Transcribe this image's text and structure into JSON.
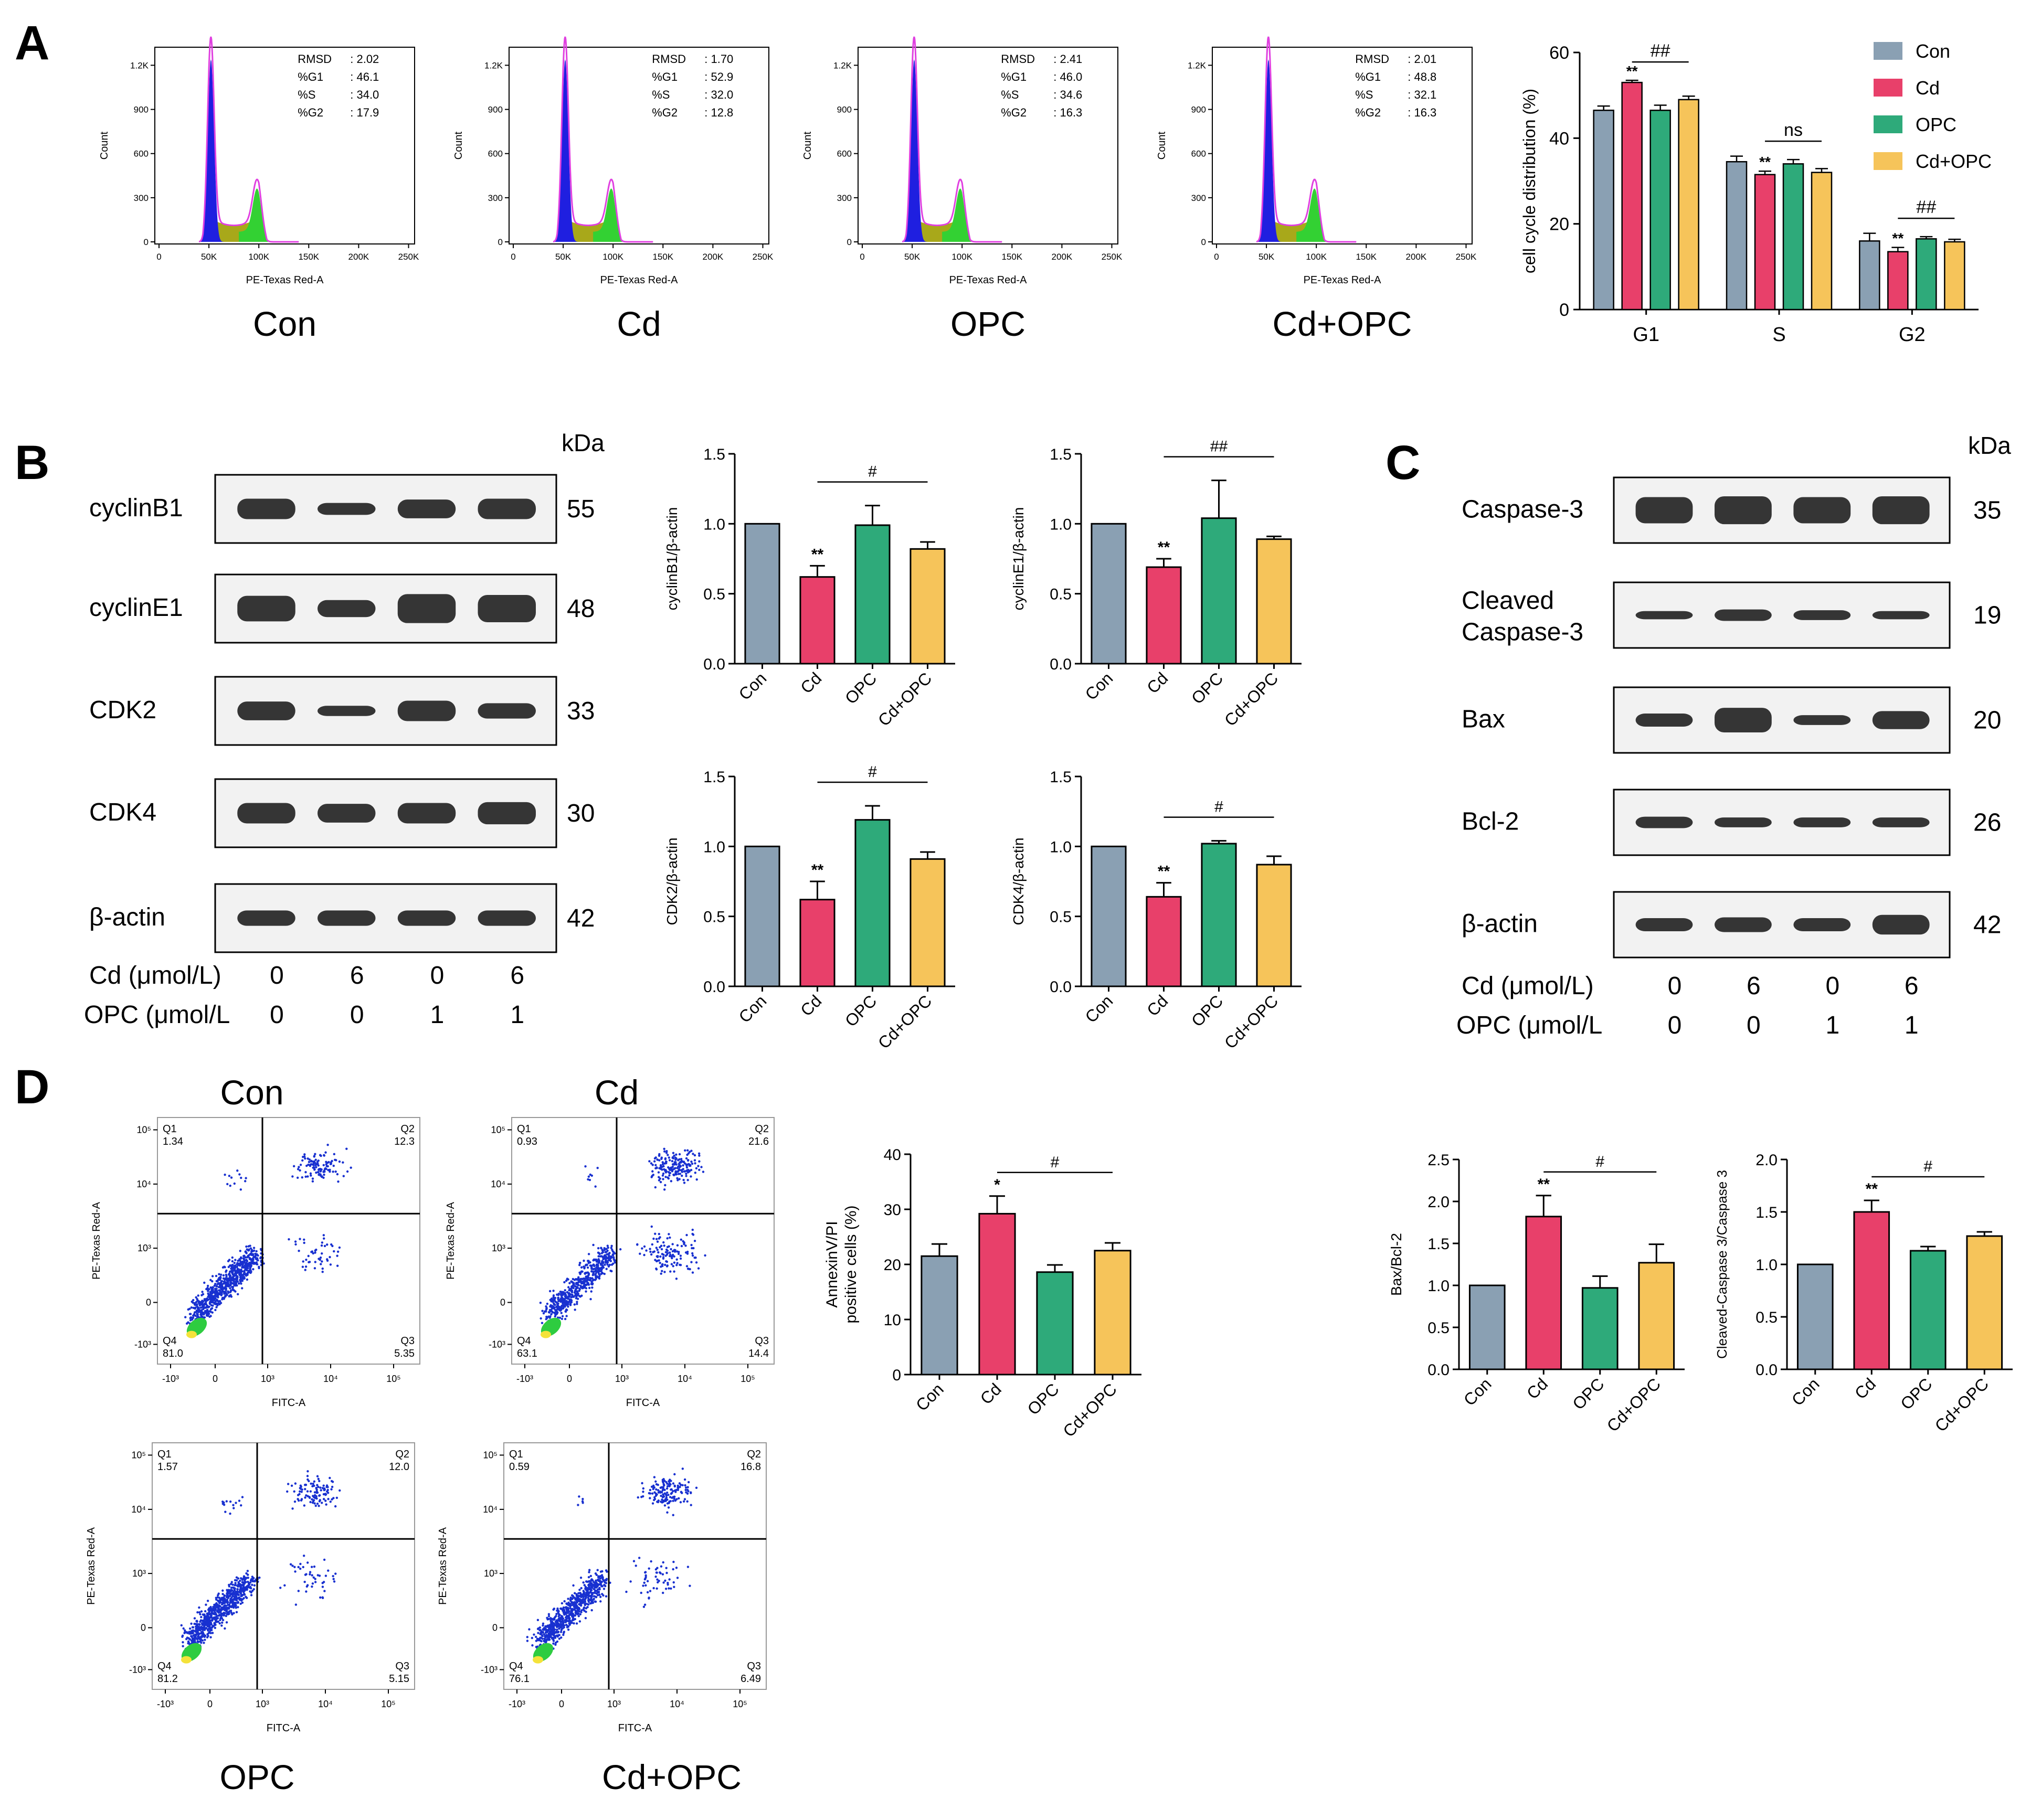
{
  "colors": {
    "con": "#8aa0b3",
    "cd": "#e8406a",
    "opc": "#2eaa7a",
    "cdopc": "#f6c45a",
    "hist_blue": "#1f1fe0",
    "hist_olive": "#a8a81a",
    "hist_green": "#33d133",
    "hist_outline": "#e040e0",
    "dot_blue": "#1830d0"
  },
  "panels": {
    "a": "A",
    "b": "B",
    "c": "C",
    "d": "D"
  },
  "histograms": [
    {
      "group": "Con",
      "stats": [
        {
          "k": "RMSD",
          "v": "2.02"
        },
        {
          "k": "%G1",
          "v": "46.1"
        },
        {
          "k": "%S",
          "v": "34.0"
        },
        {
          "k": "%G2",
          "v": "17.9"
        }
      ]
    },
    {
      "group": "Cd",
      "stats": [
        {
          "k": "RMSD",
          "v": "1.70"
        },
        {
          "k": "%G1",
          "v": "52.9"
        },
        {
          "k": "%S",
          "v": "32.0"
        },
        {
          "k": "%G2",
          "v": "12.8"
        }
      ]
    },
    {
      "group": "OPC",
      "stats": [
        {
          "k": "RMSD",
          "v": "2.41"
        },
        {
          "k": "%G1",
          "v": "46.0"
        },
        {
          "k": "%S",
          "v": "34.6"
        },
        {
          "k": "%G2",
          "v": "16.3"
        }
      ]
    },
    {
      "group": "Cd+OPC",
      "stats": [
        {
          "k": "RMSD",
          "v": "2.01"
        },
        {
          "k": "%G1",
          "v": "48.8"
        },
        {
          "k": "%S",
          "v": "32.1"
        },
        {
          "k": "%G2",
          "v": "16.3"
        }
      ]
    }
  ],
  "hist_axis": {
    "xlabel": "PE-Texas Red-A",
    "ylabel": "Count",
    "xticks": [
      "0",
      "50K",
      "100K",
      "150K",
      "200K",
      "250K"
    ],
    "yticks": [
      "0",
      "300",
      "600",
      "900",
      "1.2K"
    ]
  },
  "cellcycle_chart": {
    "type": "bar",
    "ylabel": "cell cycle distribution (%)",
    "ylim": [
      0,
      60
    ],
    "yticks": [
      "0",
      "20",
      "40",
      "60"
    ],
    "categories": [
      "G1",
      "S",
      "G2"
    ],
    "legend": [
      "Con",
      "Cd",
      "OPC",
      "Cd+OPC"
    ],
    "legend_position": "top-right",
    "series": [
      {
        "name": "Con",
        "values": [
          46.5,
          34.5,
          16.0
        ],
        "err": [
          1.0,
          1.3,
          1.8
        ]
      },
      {
        "name": "Cd",
        "values": [
          53.0,
          31.5,
          13.5
        ],
        "err": [
          0.5,
          0.8,
          1.0
        ]
      },
      {
        "name": "OPC",
        "values": [
          46.5,
          34.0,
          16.5
        ],
        "err": [
          1.2,
          1.0,
          0.5
        ]
      },
      {
        "name": "Cd+OPC",
        "values": [
          49.0,
          32.0,
          15.8
        ],
        "err": [
          0.8,
          0.9,
          0.6
        ]
      }
    ],
    "sig": [
      "##",
      "ns",
      "##"
    ],
    "star": "**"
  },
  "wb_b": {
    "kda": "kDa",
    "rows": [
      {
        "label": "cyclinB1",
        "kda": "55"
      },
      {
        "label": "cyclinE1",
        "kda": "48"
      },
      {
        "label": "CDK2",
        "kda": "33"
      },
      {
        "label": "CDK4",
        "kda": "30"
      },
      {
        "label": "β-actin",
        "kda": "42"
      }
    ],
    "cd_label": "Cd (μmol/L)",
    "opc_label": "OPC (μmol/L",
    "cd_values": [
      "0",
      "6",
      "0",
      "6"
    ],
    "opc_values": [
      "0",
      "0",
      "1",
      "1"
    ]
  },
  "wb_c": {
    "kda": "kDa",
    "rows": [
      {
        "label": "Caspase-3",
        "kda": "35"
      },
      {
        "label": "Cleaved\nCaspase-3",
        "kda": "19"
      },
      {
        "label": "Bax",
        "kda": "20"
      },
      {
        "label": "Bcl-2",
        "kda": "26"
      },
      {
        "label": "β-actin",
        "kda": "42"
      }
    ],
    "cd_label": "Cd (μmol/L)",
    "opc_label": "OPC (μmol/L",
    "cd_values": [
      "0",
      "6",
      "0",
      "6"
    ],
    "opc_values": [
      "0",
      "0",
      "1",
      "1"
    ]
  },
  "bar_charts": [
    {
      "id": "cyclinb1",
      "type": "bar",
      "ylabel": "cyclinB1/β-actin",
      "ylim": [
        0,
        1.5
      ],
      "yticks": [
        "0.0",
        "0.5",
        "1.0",
        "1.5"
      ],
      "categories": [
        "Con",
        "Cd",
        "OPC",
        "Cd+OPC"
      ],
      "values": [
        1.0,
        0.62,
        0.99,
        0.82
      ],
      "err": [
        0,
        0.08,
        0.14,
        0.05
      ],
      "star": "**",
      "sig": "#"
    },
    {
      "id": "cycline1",
      "type": "bar",
      "ylabel": "cyclinE1/β-actin",
      "ylim": [
        0,
        1.5
      ],
      "yticks": [
        "0.0",
        "0.5",
        "1.0",
        "1.5"
      ],
      "categories": [
        "Con",
        "Cd",
        "OPC",
        "Cd+OPC"
      ],
      "values": [
        1.0,
        0.69,
        1.04,
        0.89
      ],
      "err": [
        0,
        0.06,
        0.27,
        0.02
      ],
      "star": "**",
      "sig": "##"
    },
    {
      "id": "cdk2",
      "type": "bar",
      "ylabel": "CDK2/β-actin",
      "ylim": [
        0,
        1.5
      ],
      "yticks": [
        "0.0",
        "0.5",
        "1.0",
        "1.5"
      ],
      "categories": [
        "Con",
        "Cd",
        "OPC",
        "Cd+OPC"
      ],
      "values": [
        1.0,
        0.62,
        1.19,
        0.91
      ],
      "err": [
        0,
        0.13,
        0.1,
        0.05
      ],
      "star": "**",
      "sig": "#"
    },
    {
      "id": "cdk4",
      "type": "bar",
      "ylabel": "CDK4/β-actin",
      "ylim": [
        0,
        1.5
      ],
      "yticks": [
        "0.0",
        "0.5",
        "1.0",
        "1.5"
      ],
      "categories": [
        "Con",
        "Cd",
        "OPC",
        "Cd+OPC"
      ],
      "values": [
        1.0,
        0.64,
        1.02,
        0.87
      ],
      "err": [
        0,
        0.1,
        0.02,
        0.06
      ],
      "star": "**",
      "sig": "#"
    },
    {
      "id": "annexin",
      "type": "bar",
      "ylabel": "AnnexinV/PI\npositive cells (%)",
      "ylim": [
        0,
        40
      ],
      "yticks": [
        "0",
        "10",
        "20",
        "30",
        "40"
      ],
      "categories": [
        "Con",
        "Cd",
        "OPC",
        "Cd+OPC"
      ],
      "values": [
        21.5,
        29.2,
        18.6,
        22.5
      ],
      "err": [
        2.2,
        3.2,
        1.3,
        1.4
      ],
      "star": "*",
      "sig": "#"
    },
    {
      "id": "baxbcl2",
      "type": "bar",
      "ylabel": "Bax/Bcl-2",
      "ylim": [
        0,
        2.5
      ],
      "yticks": [
        "0.0",
        "0.5",
        "1.0",
        "1.5",
        "2.0",
        "2.5"
      ],
      "categories": [
        "Con",
        "Cd",
        "OPC",
        "Cd+OPC"
      ],
      "values": [
        1.0,
        1.82,
        0.97,
        1.27
      ],
      "err": [
        0,
        0.25,
        0.14,
        0.22
      ],
      "star": "**",
      "sig": "#"
    },
    {
      "id": "cleaved",
      "type": "bar",
      "ylabel": "Cleaved-Caspase 3/Caspase 3",
      "ylim": [
        0,
        2.0
      ],
      "yticks": [
        "0.0",
        "0.5",
        "1.0",
        "1.5",
        "2.0"
      ],
      "categories": [
        "Con",
        "Cd",
        "OPC",
        "Cd+OPC"
      ],
      "values": [
        1.0,
        1.5,
        1.13,
        1.27
      ],
      "err": [
        0,
        0.11,
        0.04,
        0.04
      ],
      "star": "**",
      "sig": "#"
    }
  ],
  "flow": {
    "xlabel": "FITC-A",
    "ylabel": "PE-Texas Red-A",
    "xticks": [
      "-10³",
      "0",
      "10³",
      "10⁴",
      "10⁵"
    ],
    "yticks": [
      "-10³",
      "0",
      "10³",
      "10⁴",
      "10⁵"
    ],
    "plots": [
      {
        "group": "Con",
        "q1": "1.34",
        "q2": "12.3",
        "q3": "5.35",
        "q4": "81.0"
      },
      {
        "group": "Cd",
        "q1": "0.93",
        "q2": "21.6",
        "q3": "14.4",
        "q4": "63.1"
      },
      {
        "group": "OPC",
        "q1": "1.57",
        "q2": "12.0",
        "q3": "5.15",
        "q4": "81.2"
      },
      {
        "group": "Cd+OPC",
        "q1": "0.59",
        "q2": "16.8",
        "q3": "6.49",
        "q4": "76.1"
      }
    ],
    "qlabels": [
      "Q1",
      "Q2",
      "Q3",
      "Q4"
    ]
  }
}
